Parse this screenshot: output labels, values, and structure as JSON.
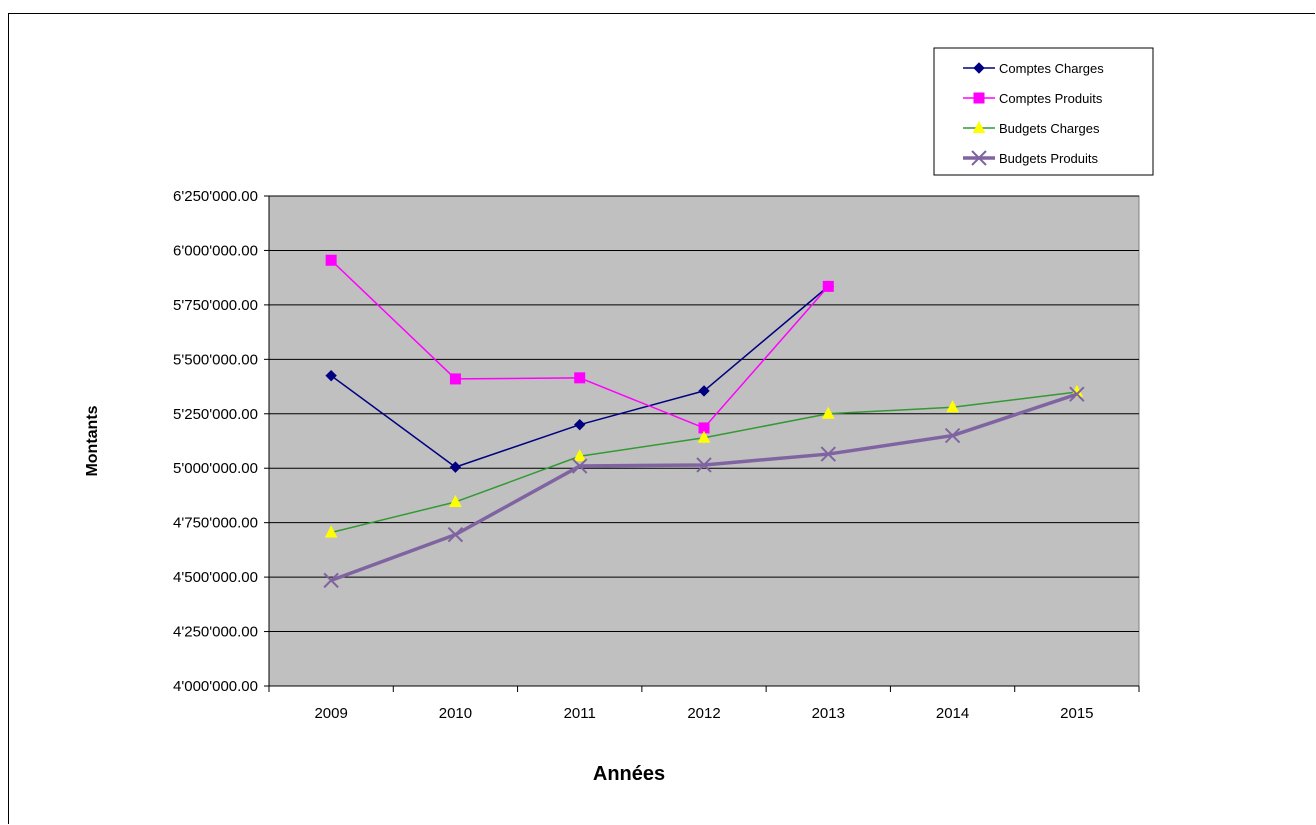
{
  "chart_data": {
    "type": "line",
    "title": "",
    "xlabel": "Années",
    "ylabel": "Montants",
    "categories": [
      "2009",
      "2010",
      "2011",
      "2012",
      "2013",
      "2014",
      "2015"
    ],
    "ylim": [
      4000000,
      6250000
    ],
    "yticks": [
      4000000,
      4250000,
      4500000,
      4750000,
      5000000,
      5250000,
      5500000,
      5750000,
      6000000,
      6250000
    ],
    "ytick_labels": [
      "4'000'000.00",
      "4'250'000.00",
      "4'500'000.00",
      "4'750'000.00",
      "5'000'000.00",
      "5'250'000.00",
      "5'500'000.00",
      "5'750'000.00",
      "6'000'000.00",
      "6'250'000.00"
    ],
    "grid": true,
    "plot_background": "#c0c0c0",
    "legend_position": "top-right",
    "series": [
      {
        "name": "Comptes Charges",
        "color": "#000080",
        "marker": "diamond",
        "values": [
          5425000,
          5005000,
          5200000,
          5355000,
          5835000,
          null,
          null
        ]
      },
      {
        "name": "Comptes Produits",
        "color": "#ff00ff",
        "marker": "square",
        "values": [
          5955000,
          5410000,
          5415000,
          5185000,
          5835000,
          null,
          null
        ]
      },
      {
        "name": "Budgets Charges",
        "color": "#339933",
        "marker": "triangle",
        "marker_color": "#ffff00",
        "values": [
          4705000,
          4845000,
          5055000,
          5140000,
          5250000,
          5280000,
          5350000
        ]
      },
      {
        "name": "Budgets Produits",
        "color": "#8064a2",
        "marker": "x",
        "thick": true,
        "values": [
          4485000,
          4695000,
          5010000,
          5015000,
          5065000,
          5150000,
          5340000
        ]
      }
    ]
  }
}
